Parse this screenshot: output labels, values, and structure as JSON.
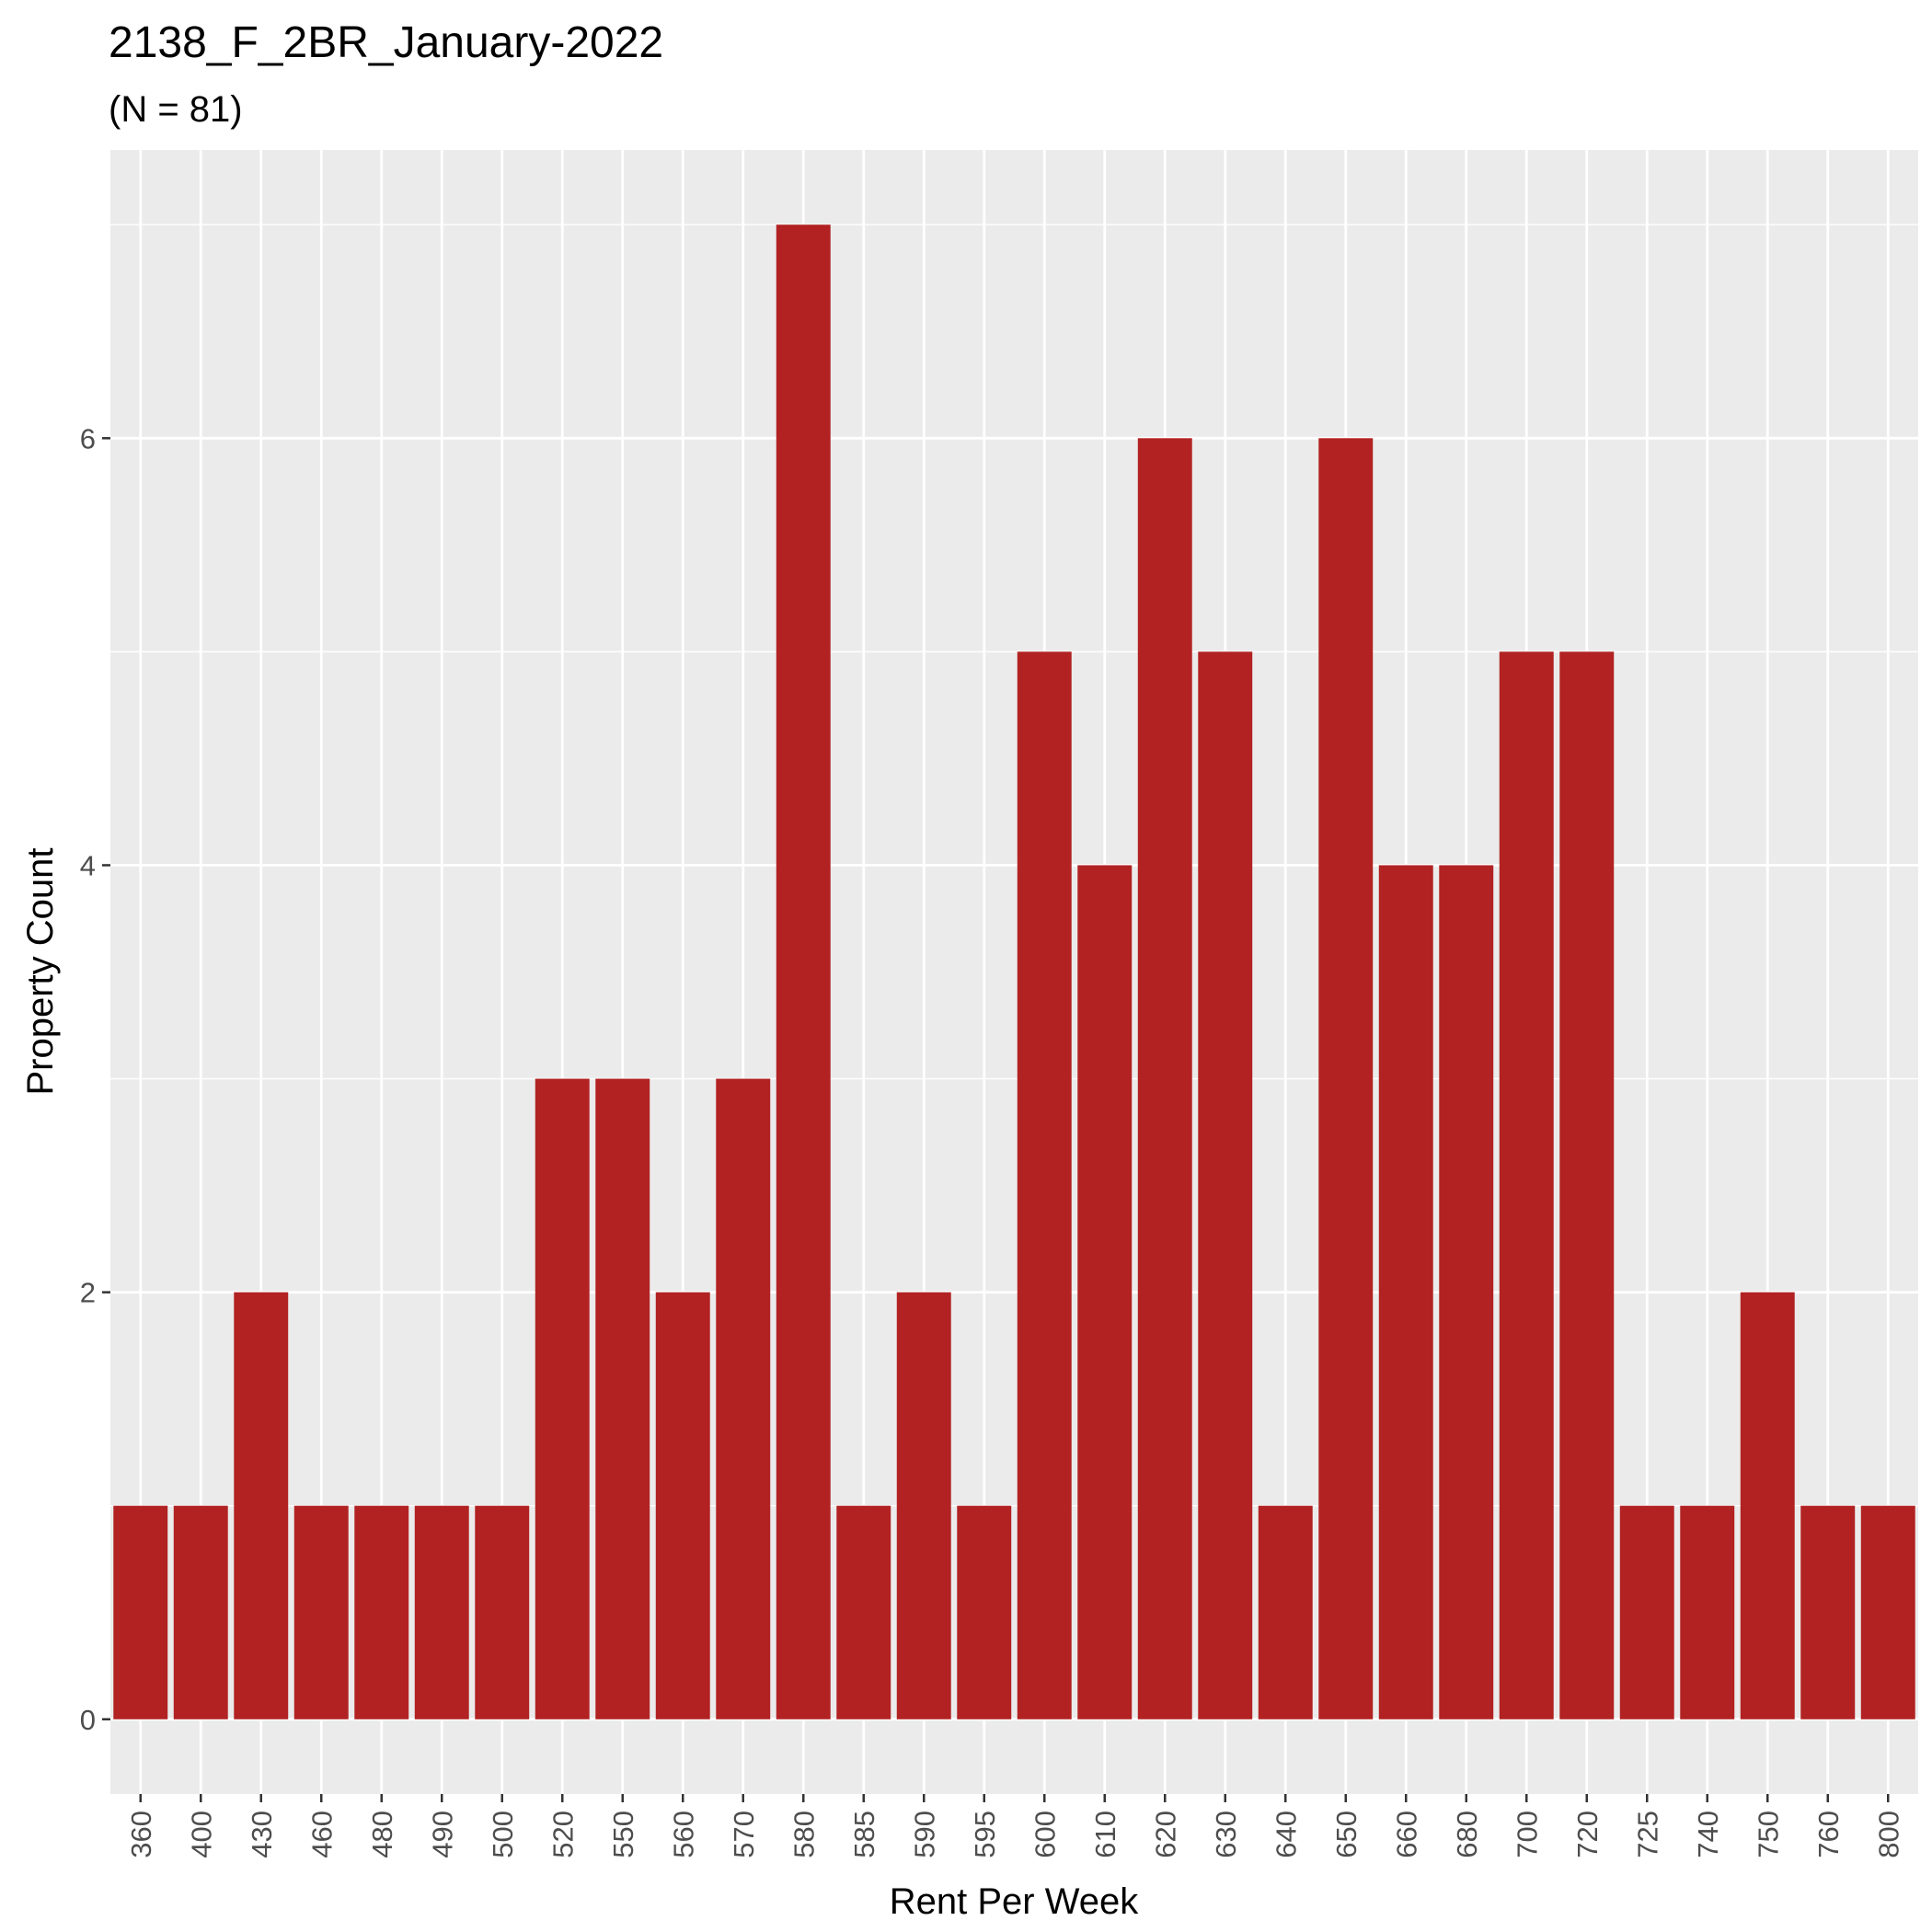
{
  "chart_data": {
    "type": "bar",
    "title": "2138_F_2BR_January-2022",
    "subtitle": "(N = 81)",
    "xlabel": "Rent Per Week",
    "ylabel": "Property Count",
    "categories": [
      "360",
      "400",
      "430",
      "460",
      "480",
      "490",
      "500",
      "520",
      "550",
      "560",
      "570",
      "580",
      "585",
      "590",
      "595",
      "600",
      "610",
      "620",
      "630",
      "640",
      "650",
      "660",
      "680",
      "700",
      "720",
      "725",
      "740",
      "750",
      "760",
      "800"
    ],
    "values": [
      1,
      1,
      2,
      1,
      1,
      1,
      1,
      3,
      3,
      2,
      3,
      7,
      1,
      2,
      1,
      5,
      4,
      6,
      5,
      1,
      6,
      4,
      4,
      5,
      5,
      1,
      1,
      2,
      1,
      1
    ],
    "ylim": [
      -0.35,
      7.35
    ],
    "yticks": [
      0,
      2,
      4,
      6
    ],
    "grid": true,
    "legend": "none",
    "colors": {
      "bar": "#b22222",
      "panel": "#ebebeb",
      "grid_major": "#ffffff",
      "tick": "#333333",
      "tick_label": "#4d4d4d"
    }
  }
}
